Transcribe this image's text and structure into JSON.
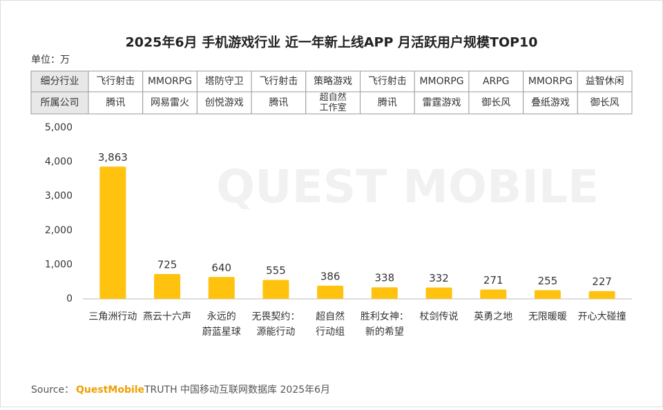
{
  "chart_data": {
    "type": "bar",
    "title": "2025年6月 手机游戏行业 近一年新上线APP 月活跃用户规模TOP10",
    "unit": "单位：万",
    "watermark": "QUEST MOBILE",
    "categories": [
      [
        "三角洲行动"
      ],
      [
        "燕云十六声"
      ],
      [
        "永远的",
        "蔚蓝星球"
      ],
      [
        "无畏契约：",
        "源能行动"
      ],
      [
        "超自然",
        "行动组"
      ],
      [
        "胜利女神：",
        "新的希望"
      ],
      [
        "杖剑传说"
      ],
      [
        "英勇之地"
      ],
      [
        "无限暖暖"
      ],
      [
        "开心大碰撞"
      ]
    ],
    "values": [
      3863,
      725,
      640,
      555,
      386,
      338,
      332,
      271,
      255,
      227
    ],
    "value_labels": [
      "3,863",
      "725",
      "640",
      "555",
      "386",
      "338",
      "332",
      "271",
      "255",
      "227"
    ],
    "color": "#ffc20e",
    "ylim": [
      0,
      5000
    ],
    "yticks": [
      0,
      {
        "value": 1000,
        "label": "1,000"
      },
      {
        "value": 2000,
        "label": "2,000"
      },
      {
        "value": 3000,
        "label": "3,000"
      },
      {
        "value": 4000,
        "label": "4,000"
      },
      {
        "value": 5000,
        "label": "5,000"
      }
    ],
    "grid": false,
    "table": {
      "rows": [
        [
          "细分行业",
          "飞行射击",
          "MMORPG",
          "塔防守卫",
          "飞行射击",
          "策略游戏",
          "飞行射击",
          "MMORPG",
          "ARPG",
          "MMORPG",
          "益智休闲"
        ],
        [
          "所属公司",
          "腾讯",
          "网易雷火",
          "创悦游戏",
          "腾讯",
          [
            "超自然",
            "工作室"
          ],
          "腾讯",
          "雷霆游戏",
          "御长风",
          "叠纸游戏",
          "御长风"
        ]
      ]
    },
    "source": {
      "label": "Source：",
      "brand": "QuestMobile",
      "text": "TRUTH 中国移动互联网数据库 2025年6月"
    }
  }
}
